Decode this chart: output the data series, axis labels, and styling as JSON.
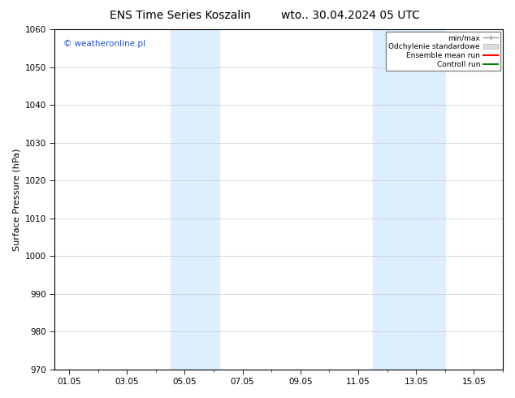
{
  "title_left": "ENS Time Series Koszalin",
  "title_right": "wto.. 30.04.2024 05 UTC",
  "ylabel": "Surface Pressure (hPa)",
  "ylim": [
    970,
    1060
  ],
  "yticks": [
    970,
    980,
    990,
    1000,
    1010,
    1020,
    1030,
    1040,
    1050,
    1060
  ],
  "xtick_labels": [
    "01.05",
    "03.05",
    "05.05",
    "07.05",
    "09.05",
    "11.05",
    "13.05",
    "15.05"
  ],
  "xtick_positions": [
    0,
    2,
    4,
    6,
    8,
    10,
    12,
    14
  ],
  "xlim": [
    -0.5,
    14.7
  ],
  "shaded_bands": [
    {
      "x_start": 3.5,
      "x_end": 5.2,
      "color": "#ddeeff"
    },
    {
      "x_start": 10.5,
      "x_end": 13.0,
      "color": "#ddeeff"
    }
  ],
  "watermark": "© weatheronline.pl",
  "legend_entries": [
    {
      "label": "min/max",
      "color": "#aaaaaa",
      "style": "line_with_cap"
    },
    {
      "label": "Odchylenie standardowe",
      "color": "#cccccc",
      "style": "fill"
    },
    {
      "label": "Ensemble mean run",
      "color": "#ff0000",
      "style": "line"
    },
    {
      "label": "Controll run",
      "color": "#008800",
      "style": "line"
    }
  ],
  "background_color": "#ffffff",
  "plot_bg_color": "#ffffff",
  "grid_color": "#cccccc",
  "title_fontsize": 10,
  "tick_fontsize": 7.5,
  "ylabel_fontsize": 8,
  "watermark_color": "#2255cc"
}
